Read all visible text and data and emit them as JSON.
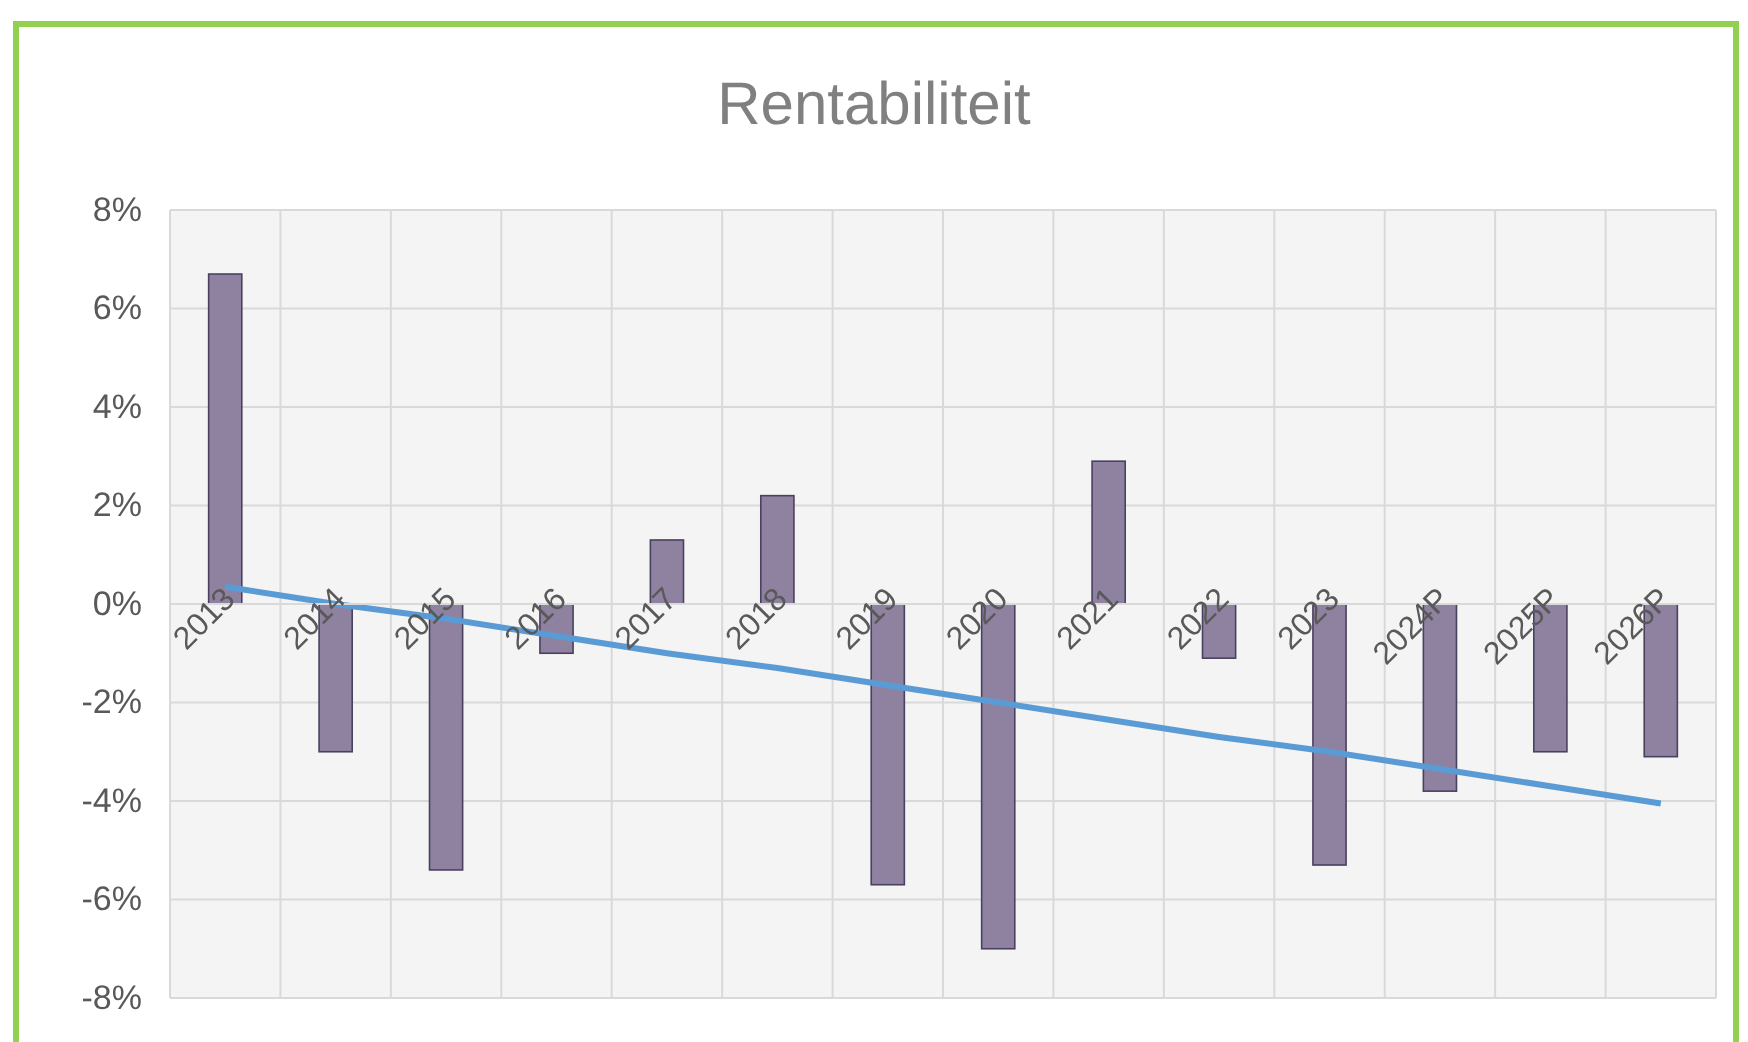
{
  "chart_data": {
    "type": "bar",
    "title": "Rentabiliteit",
    "categories": [
      "2013",
      "2014",
      "2015",
      "2016",
      "2017",
      "2018",
      "2019",
      "2020",
      "2021",
      "2022",
      "2023",
      "2024P",
      "2025P",
      "2026P"
    ],
    "series": [
      {
        "color": "#8e82a0",
        "values": [
          6.7,
          -3.0,
          -5.4,
          -1.0,
          1.3,
          2.2,
          -5.7,
          -7.0,
          2.9,
          -1.1,
          -5.3,
          -3.8,
          -3.0,
          -3.1
        ]
      },
      {
        "type": "line",
        "color": "#5b9bd5",
        "values": [
          0.35,
          0.0,
          -0.3,
          -0.65,
          -1.0,
          -1.3,
          -1.65,
          -2.0,
          -2.35,
          -2.7,
          -3.0,
          -3.35,
          -3.7,
          -4.05
        ]
      }
    ],
    "ylim": [
      -8,
      8
    ],
    "yticks": [
      {
        "value": -8,
        "label": "-8%"
      },
      {
        "value": -6,
        "label": "-6%"
      },
      {
        "value": -4,
        "label": "-4%"
      },
      {
        "value": -2,
        "label": "-2%"
      },
      {
        "value": 0,
        "label": "0%"
      },
      {
        "value": 2,
        "label": "2%"
      },
      {
        "value": 4,
        "label": "4%"
      },
      {
        "value": 6,
        "label": "6%"
      },
      {
        "value": 8,
        "label": "8%"
      }
    ],
    "grid": true
  }
}
